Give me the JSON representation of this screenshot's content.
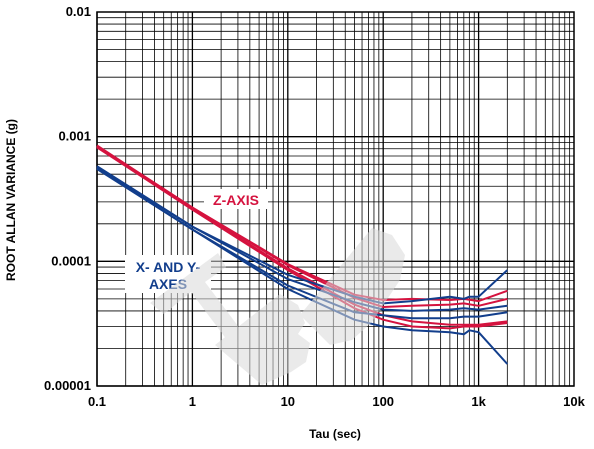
{
  "chart_data": {
    "type": "line",
    "xscale": "log",
    "yscale": "log",
    "xlim": [
      0.1,
      10000
    ],
    "ylim": [
      1e-05,
      0.01
    ],
    "grid": true,
    "xlabel": "Tau (sec)",
    "ylabel": "ROOT ALLAN VARIANCE (g)",
    "xticks": [
      "0.1",
      "1",
      "10",
      "100",
      "1k",
      "10k"
    ],
    "yticks": [
      "0.00001",
      "0.0001",
      "0.001",
      "0.01"
    ],
    "annotations": [
      {
        "text": "Z-AXIS",
        "color": "#d5133f"
      },
      {
        "text": "X- AND Y-",
        "color": "#123e8c"
      },
      {
        "text": "AXES",
        "color": "#123e8c"
      }
    ],
    "colors": {
      "z_axis": "#d5133f",
      "xy_axes": "#123e8c",
      "grid": "#000000",
      "label_box": "#ffffff"
    },
    "watermark": {
      "text": "TBD",
      "color": "#d9d9d9"
    },
    "series": [
      {
        "group": "Z-AXIS",
        "x": [
          0.1,
          1,
          10,
          50,
          100,
          200,
          500,
          700,
          1000,
          2000
        ],
        "y": [
          0.00085,
          0.00027,
          9.5e-05,
          5.4e-05,
          4.9e-05,
          5e-05,
          4.9e-05,
          5e-05,
          4.8e-05,
          5.8e-05
        ]
      },
      {
        "group": "Z-AXIS",
        "x": [
          0.1,
          1,
          10,
          50,
          100,
          200,
          500,
          700,
          1000,
          2000
        ],
        "y": [
          0.00084,
          0.00027,
          9.3e-05,
          5.1e-05,
          4.3e-05,
          4.4e-05,
          4.5e-05,
          4.6e-05,
          4.4e-05,
          5e-05
        ]
      },
      {
        "group": "Z-AXIS",
        "x": [
          0.1,
          1,
          10,
          50,
          100,
          200,
          500,
          700,
          1000,
          2000
        ],
        "y": [
          0.00083,
          0.000265,
          8.8e-05,
          4.5e-05,
          3.7e-05,
          3.3e-05,
          3.1e-05,
          3.1e-05,
          3.1e-05,
          3.3e-05
        ]
      },
      {
        "group": "Z-AXIS",
        "x": [
          0.1,
          1,
          10,
          50,
          100,
          200,
          500,
          700,
          1000,
          2000
        ],
        "y": [
          0.00082,
          0.00026,
          8.5e-05,
          4.2e-05,
          3.4e-05,
          3e-05,
          2.9e-05,
          3e-05,
          3e-05,
          3.2e-05
        ]
      },
      {
        "group": "X- AND Y-AXES",
        "x": [
          0.1,
          1,
          10,
          50,
          100,
          200,
          500,
          700,
          800,
          1000,
          2000
        ],
        "y": [
          0.00058,
          0.00019,
          7.8e-05,
          5.2e-05,
          4.6e-05,
          4.8e-05,
          5.2e-05,
          5e-05,
          5.2e-05,
          5.2e-05,
          8.5e-05
        ]
      },
      {
        "group": "X- AND Y-AXES",
        "x": [
          0.1,
          1,
          10,
          50,
          100,
          200,
          500,
          700,
          1000,
          2000
        ],
        "y": [
          0.00057,
          0.00019,
          7.2e-05,
          4.7e-05,
          4.1e-05,
          4e-05,
          4.1e-05,
          4.2e-05,
          4.1e-05,
          4.4e-05
        ]
      },
      {
        "group": "X- AND Y-AXES",
        "x": [
          0.1,
          1,
          10,
          50,
          100,
          200,
          500,
          700,
          1000,
          2000
        ],
        "y": [
          0.00056,
          0.00018,
          6.4e-05,
          3.9e-05,
          3.7e-05,
          3.5e-05,
          3.5e-05,
          3.6e-05,
          3.6e-05,
          3.9e-05
        ]
      },
      {
        "group": "X- AND Y-AXES",
        "x": [
          0.1,
          1,
          10,
          50,
          100,
          200,
          500,
          700,
          800,
          1000,
          2000
        ],
        "y": [
          0.00055,
          0.00018,
          6e-05,
          3.4e-05,
          3e-05,
          2.8e-05,
          2.7e-05,
          2.6e-05,
          2.8e-05,
          2.7e-05,
          1.5e-05
        ]
      }
    ]
  }
}
